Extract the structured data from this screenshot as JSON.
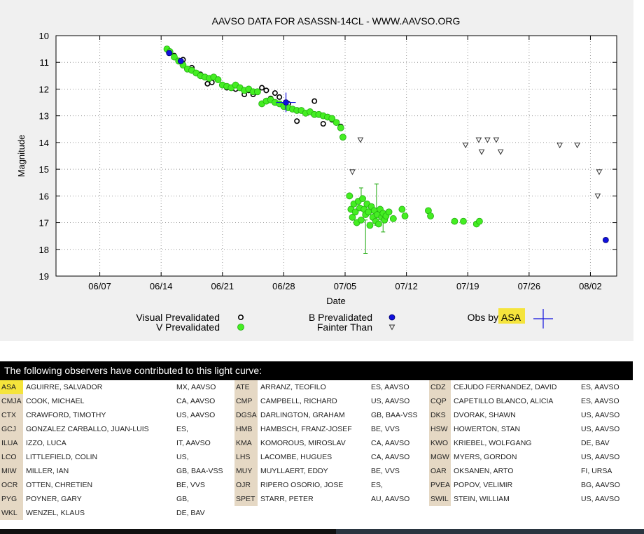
{
  "chart_data": {
    "type": "scatter",
    "title": "AAVSO DATA FOR ASASSN-14CL - WWW.AAVSO.ORG",
    "xlabel": "Date",
    "ylabel": "Magnitude",
    "xlim": [
      "2014-06-02",
      "2014-08-05"
    ],
    "ylim": [
      19,
      10
    ],
    "y_inverted": true,
    "grid": true,
    "x_ticks": [
      {
        "date": "2014-06-07",
        "label": "06/07"
      },
      {
        "date": "2014-06-14",
        "label": "06/14"
      },
      {
        "date": "2014-06-21",
        "label": "06/21"
      },
      {
        "date": "2014-06-28",
        "label": "06/28"
      },
      {
        "date": "2014-07-05",
        "label": "07/05"
      },
      {
        "date": "2014-07-12",
        "label": "07/12"
      },
      {
        "date": "2014-07-19",
        "label": "07/19"
      },
      {
        "date": "2014-07-26",
        "label": "07/26"
      },
      {
        "date": "2014-08-02",
        "label": "08/02"
      }
    ],
    "y_ticks": [
      "10",
      "11",
      "12",
      "13",
      "14",
      "15",
      "16",
      "17",
      "18",
      "19"
    ],
    "legend": {
      "visual": "Visual Prevalidated",
      "v": "V Prevalidated",
      "b": "B Prevalidated",
      "fainter": "Fainter Than",
      "obs_prefix": "Obs by",
      "obs_code": "ASA"
    },
    "colors": {
      "visual": "#000000",
      "v": "#44ee22",
      "v_edge": "#22aa11",
      "b": "#1010dd",
      "fainter": "#333333",
      "highlight": "#f5e43c",
      "grid": "#999999"
    },
    "series": [
      {
        "name": "Visual Prevalidated",
        "marker": "circle-open-black",
        "points": [
          [
            "2014-06-14T18:00",
            10.55
          ],
          [
            "2014-06-15T12:00",
            10.75
          ],
          [
            "2014-06-16T12:00",
            10.9
          ],
          [
            "2014-06-17T12:00",
            11.2
          ],
          [
            "2014-06-18T12:00",
            11.45
          ],
          [
            "2014-06-19T07:00",
            11.8
          ],
          [
            "2014-06-19T19:00",
            11.75
          ],
          [
            "2014-06-21T12:00",
            11.95
          ],
          [
            "2014-06-22T12:00",
            12.0
          ],
          [
            "2014-06-23T12:00",
            12.2
          ],
          [
            "2014-06-24T00:00",
            12.05
          ],
          [
            "2014-06-24T12:00",
            12.2
          ],
          [
            "2014-06-25T12:00",
            11.95
          ],
          [
            "2014-06-26T00:00",
            12.05
          ],
          [
            "2014-06-26T12:00",
            12.35
          ],
          [
            "2014-06-27T00:00",
            12.15
          ],
          [
            "2014-06-27T12:00",
            12.3
          ],
          [
            "2014-06-28T12:00",
            12.55
          ],
          [
            "2014-06-29T12:00",
            13.2
          ],
          [
            "2014-07-01T12:00",
            12.45
          ],
          [
            "2014-07-02T12:00",
            13.3
          ],
          [
            "2014-07-03T12:00",
            13.15
          ],
          [
            "2014-07-04T12:00",
            13.4
          ]
        ]
      },
      {
        "name": "V Prevalidated",
        "marker": "circle-filled-green",
        "points": [
          [
            "2014-06-14T16:00",
            10.5
          ],
          [
            "2014-06-15T00:00",
            10.6
          ],
          [
            "2014-06-15T12:00",
            10.8
          ],
          [
            "2014-06-16T00:00",
            10.95
          ],
          [
            "2014-06-16T12:00",
            11.1
          ],
          [
            "2014-06-17T00:00",
            11.25
          ],
          [
            "2014-06-17T12:00",
            11.3
          ],
          [
            "2014-06-18T00:00",
            11.4
          ],
          [
            "2014-06-18T12:00",
            11.5
          ],
          [
            "2014-06-19T00:00",
            11.55
          ],
          [
            "2014-06-19T12:00",
            11.6
          ],
          [
            "2014-06-20T00:00",
            11.55
          ],
          [
            "2014-06-20T12:00",
            11.65
          ],
          [
            "2014-06-21T00:00",
            11.85
          ],
          [
            "2014-06-21T12:00",
            11.9
          ],
          [
            "2014-06-22T00:00",
            11.95
          ],
          [
            "2014-06-22T12:00",
            11.85
          ],
          [
            "2014-06-23T00:00",
            11.95
          ],
          [
            "2014-06-23T12:00",
            12.05
          ],
          [
            "2014-06-24T00:00",
            12.0
          ],
          [
            "2014-06-24T12:00",
            12.1
          ],
          [
            "2014-06-25T00:00",
            12.1
          ],
          [
            "2014-06-25T12:00",
            12.55
          ],
          [
            "2014-06-26T00:00",
            12.45
          ],
          [
            "2014-06-26T12:00",
            12.4
          ],
          [
            "2014-06-27T00:00",
            12.5
          ],
          [
            "2014-06-27T12:00",
            12.55
          ],
          [
            "2014-06-28T00:00",
            12.65
          ],
          [
            "2014-06-28T12:00",
            12.7
          ],
          [
            "2014-06-29T00:00",
            12.75
          ],
          [
            "2014-06-29T12:00",
            12.8
          ],
          [
            "2014-06-30T00:00",
            12.8
          ],
          [
            "2014-06-30T12:00",
            12.9
          ],
          [
            "2014-07-01T00:00",
            12.85
          ],
          [
            "2014-07-01T12:00",
            12.95
          ],
          [
            "2014-07-02T00:00",
            12.95
          ],
          [
            "2014-07-02T12:00",
            13.0
          ],
          [
            "2014-07-03T00:00",
            13.05
          ],
          [
            "2014-07-03T12:00",
            13.1
          ],
          [
            "2014-07-04T00:00",
            13.25
          ],
          [
            "2014-07-04T12:00",
            13.45
          ],
          [
            "2014-07-04T18:00",
            13.8
          ],
          [
            "2014-07-05T12:00",
            16.0
          ],
          [
            "2014-07-05T16:00",
            16.5
          ],
          [
            "2014-07-05T20:00",
            16.8
          ],
          [
            "2014-07-06T00:00",
            16.3
          ],
          [
            "2014-07-06T04:00",
            16.6
          ],
          [
            "2014-07-06T08:00",
            17.0
          ],
          [
            "2014-07-06T12:00",
            16.2
          ],
          [
            "2014-07-06T16:00",
            16.45
          ],
          [
            "2014-07-06T20:00",
            16.9
          ],
          [
            "2014-07-07T00:00",
            16.1
          ],
          [
            "2014-07-07T04:00",
            16.5
          ],
          [
            "2014-07-07T08:00",
            16.7
          ],
          [
            "2014-07-07T12:00",
            16.3
          ],
          [
            "2014-07-07T16:00",
            16.6
          ],
          [
            "2014-07-07T20:00",
            17.1
          ],
          [
            "2014-07-08T00:00",
            16.4
          ],
          [
            "2014-07-08T04:00",
            16.8
          ],
          [
            "2014-07-08T08:00",
            16.55
          ],
          [
            "2014-07-08T12:00",
            16.95
          ],
          [
            "2014-07-08T16:00",
            16.7
          ],
          [
            "2014-07-08T20:00",
            17.05
          ],
          [
            "2014-07-09T00:00",
            16.5
          ],
          [
            "2014-07-09T04:00",
            16.8
          ],
          [
            "2014-07-09T08:00",
            16.65
          ],
          [
            "2014-07-09T12:00",
            16.9
          ],
          [
            "2014-07-09T16:00",
            16.75
          ],
          [
            "2014-07-10T00:00",
            16.6
          ],
          [
            "2014-07-10T12:00",
            16.85
          ],
          [
            "2014-07-11T12:00",
            16.5
          ],
          [
            "2014-07-11T20:00",
            16.75
          ],
          [
            "2014-07-14T12:00",
            16.55
          ],
          [
            "2014-07-14T18:00",
            16.75
          ],
          [
            "2014-07-17T12:00",
            16.95
          ],
          [
            "2014-07-18T12:00",
            16.95
          ],
          [
            "2014-07-20T00:00",
            17.05
          ],
          [
            "2014-07-20T08:00",
            16.95
          ]
        ]
      },
      {
        "name": "B Prevalidated",
        "marker": "circle-filled-blue",
        "points": [
          [
            "2014-06-14T22:00",
            10.65
          ],
          [
            "2014-06-16T06:00",
            10.95
          ],
          [
            "2014-06-28T06:00",
            12.5
          ],
          [
            "2014-08-03T18:00",
            17.65
          ]
        ]
      },
      {
        "name": "Fainter Than",
        "marker": "triangle-down-open",
        "points": [
          [
            "2014-07-05T20:00",
            15.1
          ],
          [
            "2014-07-06T18:00",
            13.9
          ],
          [
            "2014-07-18T18:00",
            14.1
          ],
          [
            "2014-07-20T06:00",
            13.9
          ],
          [
            "2014-07-20T14:00",
            14.35
          ],
          [
            "2014-07-21T06:00",
            13.9
          ],
          [
            "2014-07-22T06:00",
            13.9
          ],
          [
            "2014-07-22T18:00",
            14.35
          ],
          [
            "2014-07-29T12:00",
            14.1
          ],
          [
            "2014-07-31T12:00",
            14.1
          ],
          [
            "2014-08-02T20:00",
            16.0
          ],
          [
            "2014-08-03T00:00",
            15.1
          ]
        ]
      },
      {
        "name": "Obs by ASA",
        "marker": "cross-blue",
        "points": [
          [
            "2014-06-28T06:00",
            12.5
          ]
        ]
      }
    ],
    "error_bars": [
      [
        "2014-07-07T08:00",
        16.9,
        18.15
      ],
      [
        "2014-07-08T14:00",
        15.55,
        17.1
      ],
      [
        "2014-07-09T08:00",
        16.8,
        17.35
      ],
      [
        "2014-07-06T20:00",
        15.7,
        16.1
      ]
    ]
  },
  "observers": {
    "header": "The following observers have contributed to this light curve:",
    "rows": [
      [
        {
          "code": "ASA",
          "name": "AGUIRRE, SALVADOR",
          "info": "MX, AAVSO",
          "highlight": true
        },
        {
          "code": "ATE",
          "name": "ARRANZ, TEOFILO",
          "info": "ES, AAVSO"
        },
        {
          "code": "CDZ",
          "name": "CEJUDO FERNANDEZ, DAVID",
          "info": "ES, AAVSO"
        }
      ],
      [
        {
          "code": "CMJA",
          "name": "COOK, MICHAEL",
          "info": "CA, AAVSO"
        },
        {
          "code": "CMP",
          "name": "CAMPBELL, RICHARD",
          "info": "US, AAVSO"
        },
        {
          "code": "CQP",
          "name": "CAPETILLO BLANCO, ALICIA",
          "info": "ES, AAVSO"
        }
      ],
      [
        {
          "code": "CTX",
          "name": "CRAWFORD, TIMOTHY",
          "info": "US, AAVSO"
        },
        {
          "code": "DGSA",
          "name": "DARLINGTON, GRAHAM",
          "info": "GB, BAA-VSS"
        },
        {
          "code": "DKS",
          "name": "DVORAK, SHAWN",
          "info": "US, AAVSO"
        }
      ],
      [
        {
          "code": "GCJ",
          "name": "GONZALEZ CARBALLO, JUAN-LUIS",
          "info": "ES,"
        },
        {
          "code": "HMB",
          "name": "HAMBSCH, FRANZ-JOSEF",
          "info": "BE, VVS"
        },
        {
          "code": "HSW",
          "name": "HOWERTON, STAN",
          "info": "US, AAVSO"
        }
      ],
      [
        {
          "code": "ILUA",
          "name": "IZZO, LUCA",
          "info": "IT, AAVSO"
        },
        {
          "code": "KMA",
          "name": "KOMOROUS, MIROSLAV",
          "info": "CA, AAVSO"
        },
        {
          "code": "KWO",
          "name": "KRIEBEL, WOLFGANG",
          "info": "DE, BAV"
        }
      ],
      [
        {
          "code": "LCO",
          "name": "LITTLEFIELD, COLIN",
          "info": "US,"
        },
        {
          "code": "LHS",
          "name": "LACOMBE, HUGUES",
          "info": "CA, AAVSO"
        },
        {
          "code": "MGW",
          "name": "MYERS, GORDON",
          "info": "US, AAVSO"
        }
      ],
      [
        {
          "code": "MIW",
          "name": "MILLER, IAN",
          "info": "GB, BAA-VSS"
        },
        {
          "code": "MUY",
          "name": "MUYLLAERT, EDDY",
          "info": "BE, VVS"
        },
        {
          "code": "OAR",
          "name": "OKSANEN, ARTO",
          "info": "FI, URSA"
        }
      ],
      [
        {
          "code": "OCR",
          "name": "OTTEN, CHRETIEN",
          "info": "BE, VVS"
        },
        {
          "code": "OJR",
          "name": "RIPERO OSORIO, JOSE",
          "info": "ES,"
        },
        {
          "code": "PVEA",
          "name": "POPOV, VELIMIR",
          "info": "BG, AAVSO"
        }
      ],
      [
        {
          "code": "PYG",
          "name": "POYNER, GARY",
          "info": "GB,"
        },
        {
          "code": "SPET",
          "name": "STARR, PETER",
          "info": "AU, AAVSO"
        },
        {
          "code": "SWIL",
          "name": "STEIN, WILLIAM",
          "info": "US, AAVSO"
        }
      ],
      [
        {
          "code": "WKL",
          "name": "WENZEL, KLAUS",
          "info": "DE, BAV"
        }
      ]
    ]
  }
}
